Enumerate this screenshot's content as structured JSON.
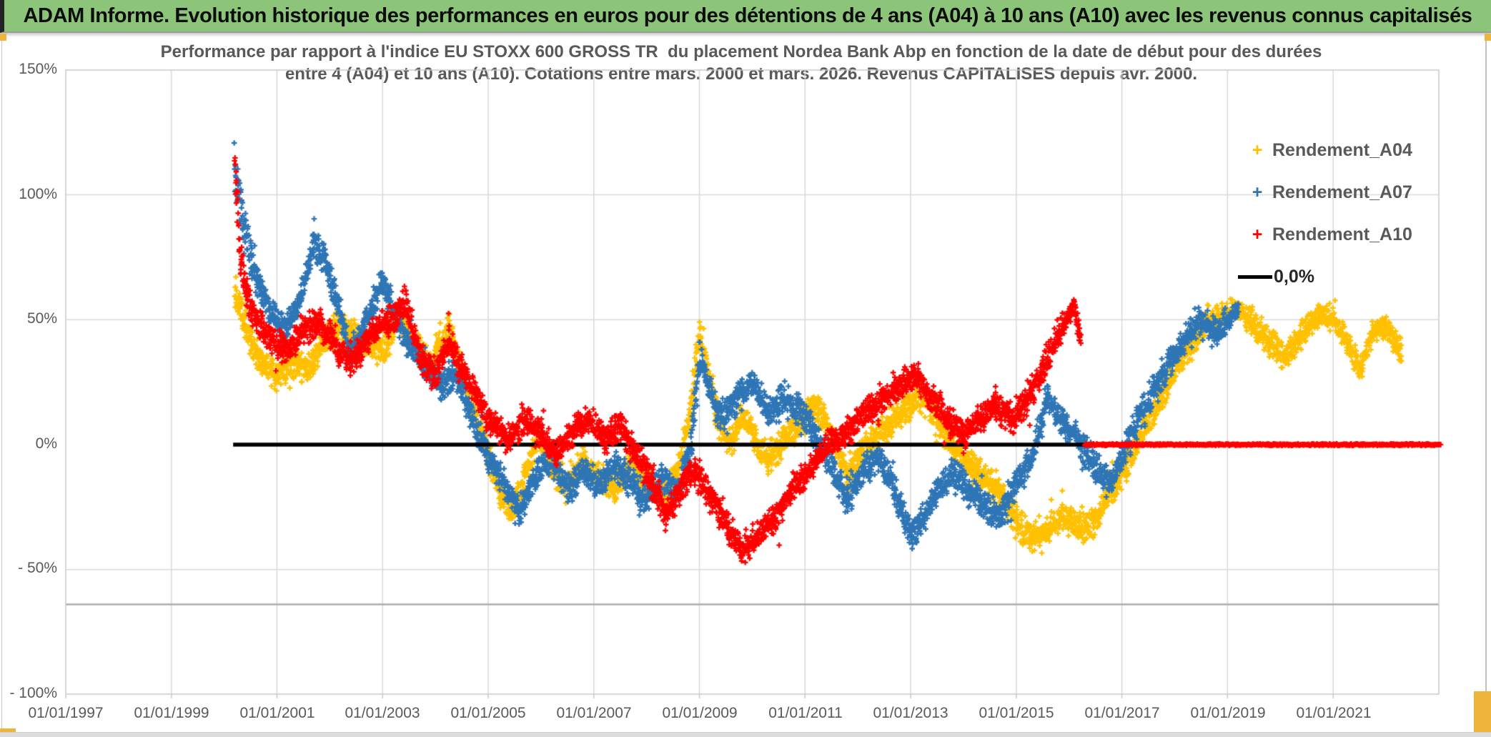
{
  "header": {
    "title": "ADAM Informe. Evolution historique des performances en euros pour des détentions de 4 ans (A04) à 10 ans (A10) avec les revenus connus capitalisés",
    "bg_color": "#8CC47A",
    "accent_color": "#EDB53C"
  },
  "chart": {
    "subtitle_line1": "Performance par rapport à l'indice EU STOXX 600 GROSS TR  du placement Nordea Bank Abp en fonction de la date de début pour des durées",
    "subtitle_line2": "entre 4 (A04) et 10 ans (A10). Cotations entre mars. 2000 et mars. 2026. Revenus CAPITALISES depuis avr. 2000.",
    "y_axis": {
      "labels": [
        "150%",
        "100%",
        "50%",
        "0%",
        "- 50%",
        "- 100%"
      ]
    },
    "x_axis": {
      "labels": [
        "01/01/1997",
        "01/01/1999",
        "01/01/2001",
        "01/01/2003",
        "01/01/2005",
        "01/01/2007",
        "01/01/2009",
        "01/01/2011",
        "01/01/2013",
        "01/01/2015",
        "01/01/2017",
        "01/01/2019",
        "01/01/2021"
      ]
    },
    "legend": {
      "items": [
        {
          "label": "Rendement_A04",
          "marker": "+",
          "color": "#FFC000"
        },
        {
          "label": "Rendement_A07",
          "marker": "+",
          "color": "#2E75B6"
        },
        {
          "label": "Rendement_A10",
          "marker": "+",
          "color": "#FF0000"
        },
        {
          "label": "0,0%",
          "marker": "line",
          "color": "#000000"
        }
      ]
    }
  },
  "chart_data": {
    "type": "scatter",
    "title": "Performance par rapport à l'indice EU STOXX 600 GROSS TR du placement Nordea Bank Abp en fonction de la date de début pour des durées entre 4 (A04) et 10 ans (A10). Cotations entre mars. 2000 et mars. 2026. Revenus CAPITALISES depuis avr. 2000.",
    "x_range_years": [
      1997,
      2023
    ],
    "ylim_pct": [
      -100,
      150
    ],
    "y_tick_pct": [
      150,
      100,
      50,
      0,
      -50,
      -100
    ],
    "x_gridline_years": [
      1999,
      2001,
      2003,
      2005,
      2007,
      2009,
      2011,
      2013,
      2015,
      2017,
      2019,
      2021
    ],
    "y_gridline_pct": [
      100,
      50,
      -50
    ],
    "extra_reference_line": {
      "value_pct": -64,
      "color": "#ADADAD"
    },
    "grid_color": "#D9D9D9",
    "border_color": "#C9C9C9",
    "zero_line": {
      "name": "0,0%",
      "color": "#000000",
      "from_year": 2000.17,
      "to_year": 2023.0,
      "value_pct": 0
    },
    "series": [
      {
        "name": "Rendement_A04",
        "color": "#FFC000",
        "marker": "plus",
        "unit": "pct",
        "points": [
          [
            2000.2,
            62,
            9
          ],
          [
            2000.45,
            45
          ],
          [
            2000.7,
            34
          ],
          [
            2001.0,
            27
          ],
          [
            2001.3,
            33
          ],
          [
            2001.6,
            30
          ],
          [
            2001.9,
            42
          ],
          [
            2002.2,
            48
          ],
          [
            2002.5,
            42
          ],
          [
            2002.8,
            40
          ],
          [
            2003.05,
            38
          ],
          [
            2003.3,
            52
          ],
          [
            2003.6,
            42
          ],
          [
            2003.9,
            30
          ],
          [
            2004.1,
            42
          ],
          [
            2004.3,
            45
          ],
          [
            2004.6,
            22
          ],
          [
            2004.9,
            2
          ],
          [
            2005.2,
            -18
          ],
          [
            2005.45,
            -27
          ],
          [
            2005.7,
            -12
          ],
          [
            2005.95,
            3
          ],
          [
            2006.2,
            -8
          ],
          [
            2006.5,
            -16
          ],
          [
            2006.8,
            -6
          ],
          [
            2007.1,
            -13
          ],
          [
            2007.4,
            -18
          ],
          [
            2007.7,
            -8
          ],
          [
            2008.0,
            -16
          ],
          [
            2008.3,
            -21
          ],
          [
            2008.6,
            -10
          ],
          [
            2008.85,
            15,
            10
          ],
          [
            2009.0,
            45,
            9
          ],
          [
            2009.15,
            30
          ],
          [
            2009.35,
            10
          ],
          [
            2009.6,
            0
          ],
          [
            2009.8,
            12
          ],
          [
            2010.0,
            6
          ],
          [
            2010.3,
            -6
          ],
          [
            2010.6,
            2
          ],
          [
            2010.9,
            8
          ],
          [
            2011.2,
            16
          ],
          [
            2011.5,
            4
          ],
          [
            2011.8,
            -12
          ],
          [
            2012.0,
            -6
          ],
          [
            2012.3,
            2
          ],
          [
            2012.6,
            8
          ],
          [
            2012.9,
            14
          ],
          [
            2013.2,
            20
          ],
          [
            2013.5,
            10
          ],
          [
            2013.8,
            0
          ],
          [
            2014.1,
            -8
          ],
          [
            2014.4,
            -14
          ],
          [
            2014.7,
            -20
          ],
          [
            2015.0,
            -30
          ],
          [
            2015.3,
            -38
          ],
          [
            2015.6,
            -34
          ],
          [
            2015.9,
            -28
          ],
          [
            2016.2,
            -34
          ],
          [
            2016.5,
            -30
          ],
          [
            2016.8,
            -18
          ],
          [
            2017.1,
            -8
          ],
          [
            2017.4,
            6
          ],
          [
            2017.7,
            18
          ],
          [
            2018.0,
            30
          ],
          [
            2018.3,
            40
          ],
          [
            2018.6,
            48
          ],
          [
            2018.9,
            52,
            6
          ],
          [
            2019.2,
            55,
            5
          ],
          [
            2019.5,
            48
          ],
          [
            2019.8,
            42
          ],
          [
            2020.1,
            35
          ],
          [
            2020.4,
            44
          ],
          [
            2020.7,
            52,
            5
          ],
          [
            2021.0,
            50,
            5
          ],
          [
            2021.25,
            42
          ],
          [
            2021.5,
            30,
            5
          ],
          [
            2021.75,
            45,
            5
          ],
          [
            2022.0,
            47,
            5
          ],
          [
            2022.3,
            37,
            5
          ]
        ]
      },
      {
        "name": "Rendement_A07",
        "color": "#2E75B6",
        "marker": "plus",
        "unit": "pct",
        "points": [
          [
            2000.2,
            115,
            14
          ],
          [
            2000.35,
            90,
            12
          ],
          [
            2000.5,
            75,
            10
          ],
          [
            2000.7,
            62
          ],
          [
            2000.9,
            52
          ],
          [
            2001.1,
            46
          ],
          [
            2001.4,
            55
          ],
          [
            2001.7,
            80,
            8
          ],
          [
            2001.9,
            74
          ],
          [
            2002.1,
            60
          ],
          [
            2002.4,
            36
          ],
          [
            2002.6,
            45
          ],
          [
            2002.8,
            55
          ],
          [
            2003.0,
            66,
            8
          ],
          [
            2003.2,
            54
          ],
          [
            2003.5,
            40
          ],
          [
            2003.8,
            32
          ],
          [
            2004.1,
            24
          ],
          [
            2004.4,
            28
          ],
          [
            2004.7,
            10
          ],
          [
            2005.0,
            -5
          ],
          [
            2005.3,
            -15
          ],
          [
            2005.6,
            -27
          ],
          [
            2005.9,
            -12
          ],
          [
            2006.2,
            -5
          ],
          [
            2006.5,
            -18
          ],
          [
            2006.8,
            -10
          ],
          [
            2007.1,
            -16
          ],
          [
            2007.4,
            -8
          ],
          [
            2007.7,
            -15
          ],
          [
            2008.0,
            -23
          ],
          [
            2008.3,
            -14
          ],
          [
            2008.6,
            -18
          ],
          [
            2008.85,
            0,
            9
          ],
          [
            2009.0,
            35,
            8
          ],
          [
            2009.2,
            22
          ],
          [
            2009.4,
            10
          ],
          [
            2009.7,
            18
          ],
          [
            2010.0,
            24
          ],
          [
            2010.3,
            12
          ],
          [
            2010.6,
            18
          ],
          [
            2010.9,
            14
          ],
          [
            2011.2,
            4
          ],
          [
            2011.5,
            -8
          ],
          [
            2011.8,
            -22
          ],
          [
            2012.1,
            -10
          ],
          [
            2012.4,
            -5
          ],
          [
            2012.7,
            -18
          ],
          [
            2013.0,
            -37,
            8
          ],
          [
            2013.2,
            -30
          ],
          [
            2013.5,
            -18
          ],
          [
            2013.8,
            -12
          ],
          [
            2014.1,
            -18
          ],
          [
            2014.4,
            -24
          ],
          [
            2014.7,
            -29
          ],
          [
            2015.0,
            -15
          ],
          [
            2015.3,
            -5
          ],
          [
            2015.6,
            18
          ],
          [
            2015.9,
            8
          ],
          [
            2016.2,
            2
          ],
          [
            2016.5,
            -10
          ],
          [
            2016.8,
            -15
          ],
          [
            2017.0,
            -5
          ],
          [
            2017.3,
            10
          ],
          [
            2017.6,
            22
          ],
          [
            2017.9,
            32
          ],
          [
            2018.2,
            42
          ],
          [
            2018.5,
            50,
            6
          ],
          [
            2018.8,
            44
          ],
          [
            2019.0,
            50,
            5
          ],
          [
            2019.2,
            54,
            5
          ]
        ]
      },
      {
        "name": "Rendement_A10",
        "color": "#FF0000",
        "marker": "plus",
        "unit": "pct",
        "flat_zero_segment": {
          "from_year": 2016.3,
          "to_year": 2023.05,
          "value_pct": 0
        },
        "points": [
          [
            2000.2,
            112,
            14
          ],
          [
            2000.3,
            75,
            12
          ],
          [
            2000.45,
            58,
            9
          ],
          [
            2000.6,
            50
          ],
          [
            2000.9,
            42
          ],
          [
            2001.2,
            38
          ],
          [
            2001.5,
            46
          ],
          [
            2001.8,
            50
          ],
          [
            2002.1,
            40
          ],
          [
            2002.4,
            33
          ],
          [
            2002.7,
            42
          ],
          [
            2003.0,
            48
          ],
          [
            2003.2,
            50
          ],
          [
            2003.45,
            57,
            6
          ],
          [
            2003.7,
            35
          ],
          [
            2004.0,
            28
          ],
          [
            2004.25,
            42
          ],
          [
            2004.5,
            30
          ],
          [
            2004.8,
            18
          ],
          [
            2005.1,
            8
          ],
          [
            2005.4,
            2
          ],
          [
            2005.7,
            10
          ],
          [
            2006.0,
            4
          ],
          [
            2006.3,
            -4
          ],
          [
            2006.6,
            6
          ],
          [
            2006.9,
            10
          ],
          [
            2007.2,
            2
          ],
          [
            2007.5,
            8
          ],
          [
            2007.8,
            -4
          ],
          [
            2008.1,
            -14
          ],
          [
            2008.35,
            -28
          ],
          [
            2008.6,
            -20
          ],
          [
            2008.9,
            -10
          ],
          [
            2009.2,
            -20
          ],
          [
            2009.5,
            -32
          ],
          [
            2009.8,
            -42
          ],
          [
            2010.1,
            -36
          ],
          [
            2010.4,
            -30
          ],
          [
            2010.7,
            -20
          ],
          [
            2011.0,
            -12
          ],
          [
            2011.3,
            -4
          ],
          [
            2011.6,
            2
          ],
          [
            2011.9,
            8
          ],
          [
            2012.2,
            14
          ],
          [
            2012.5,
            18
          ],
          [
            2012.8,
            24
          ],
          [
            2013.1,
            28
          ],
          [
            2013.4,
            18
          ],
          [
            2013.7,
            10
          ],
          [
            2014.0,
            4
          ],
          [
            2014.3,
            10
          ],
          [
            2014.6,
            16
          ],
          [
            2014.9,
            10
          ],
          [
            2015.2,
            18
          ],
          [
            2015.5,
            30
          ],
          [
            2015.8,
            44,
            6
          ],
          [
            2016.0,
            52,
            5
          ],
          [
            2016.1,
            55,
            4
          ],
          [
            2016.22,
            42,
            6
          ]
        ]
      }
    ]
  }
}
